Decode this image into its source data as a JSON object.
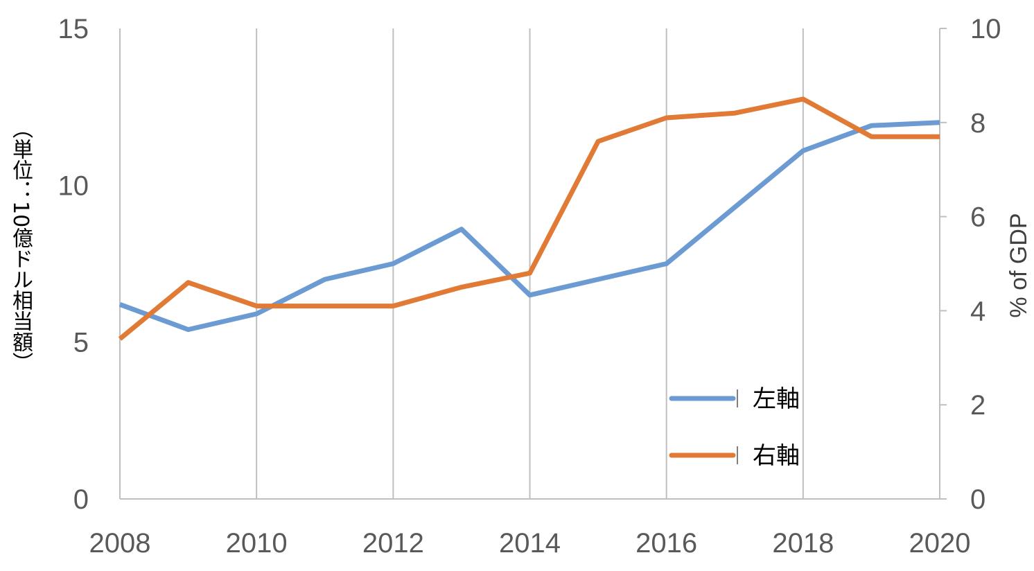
{
  "chart_data": {
    "type": "line",
    "x": [
      2008,
      2009,
      2010,
      2011,
      2012,
      2013,
      2014,
      2015,
      2016,
      2017,
      2018,
      2019,
      2020
    ],
    "x_ticks": [
      "2008",
      "2010",
      "2012",
      "2014",
      "2016",
      "2018",
      "2020"
    ],
    "y_left": {
      "label": "（単位：10億ドル相当額）",
      "ylim": [
        0,
        15
      ],
      "ticks": [
        "0",
        "5",
        "10",
        "15"
      ]
    },
    "y_right": {
      "label": "% of GDP",
      "ylim": [
        0,
        10
      ],
      "ticks": [
        "0",
        "2",
        "4",
        "6",
        "8",
        "10"
      ]
    },
    "series": [
      {
        "name": "左軸",
        "axis": "left",
        "color": "#6b9bd2",
        "values": [
          6.2,
          5.4,
          5.9,
          7.0,
          7.5,
          8.6,
          6.5,
          7.0,
          7.5,
          9.3,
          11.1,
          11.9,
          12.0
        ]
      },
      {
        "name": "右軸",
        "axis": "right",
        "color": "#e07a35",
        "values": [
          3.4,
          4.6,
          4.1,
          4.1,
          4.1,
          4.5,
          4.8,
          7.6,
          8.1,
          8.2,
          8.5,
          7.7,
          7.7
        ]
      }
    ],
    "grid": "vertical",
    "legend_position": "bottom-right"
  }
}
